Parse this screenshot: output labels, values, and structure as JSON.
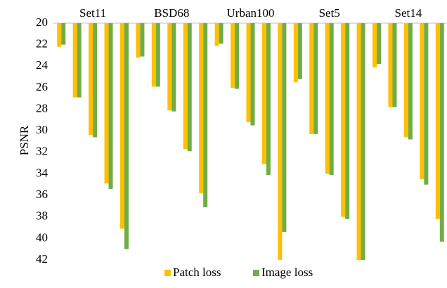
{
  "chart_data": {
    "type": "bar",
    "ylabel": "PSNR",
    "group_labels": [
      "Set11",
      "BSD68",
      "Urban100",
      "Set5",
      "Set14"
    ],
    "categories": [
      null,
      null,
      null,
      null,
      null,
      null,
      null,
      null,
      null,
      null,
      null,
      null,
      null,
      null,
      null,
      null,
      null,
      null,
      null,
      null,
      null,
      null,
      null,
      null,
      null
    ],
    "series": [
      {
        "name": "Patch loss",
        "color": "#ffc000",
        "values": [
          22.2,
          26.9,
          30.4,
          34.9,
          39.1,
          23.2,
          25.9,
          28.1,
          31.7,
          35.8,
          22.1,
          26.0,
          29.2,
          33.1,
          42,
          25.5,
          30.3,
          34.0,
          38.0,
          42,
          24.1,
          27.8,
          30.6,
          34.5,
          38.2
        ]
      },
      {
        "name": "Image loss",
        "color": "#70ad47",
        "values": [
          22.0,
          26.9,
          30.6,
          35.4,
          41.0,
          23.1,
          25.9,
          28.2,
          31.9,
          37.1,
          21.9,
          26.1,
          29.5,
          34.1,
          39.4,
          25.2,
          30.3,
          34.1,
          38.2,
          42,
          23.8,
          27.8,
          30.8,
          35.0,
          40.3
        ]
      }
    ],
    "ylim": [
      20,
      42
    ],
    "yticks": [
      20,
      22,
      24,
      26,
      28,
      30,
      32,
      34,
      36,
      38,
      40,
      42
    ],
    "y_inverted": true,
    "grid": false
  }
}
